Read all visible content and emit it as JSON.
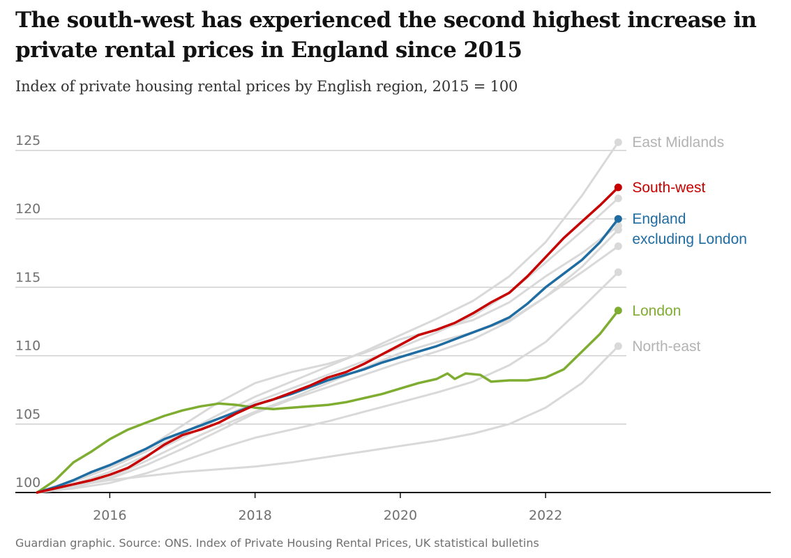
{
  "title": "The south-west has experienced the second highest increase in private rental prices in England since 2015",
  "subtitle": "Index of private housing rental prices by English region, 2015 = 100",
  "footer": "Guardian graphic. Source: ONS. Index of Private Housing Rental Prices, UK statistical bulletins",
  "chart_data": {
    "type": "line",
    "title": "The south-west has experienced the second highest increase in private rental prices in England since 2015",
    "subtitle": "Index of private housing rental prices by English region, 2015 = 100",
    "xlabel": "",
    "ylabel": "",
    "xlim": [
      2014.7,
      2025.1
    ],
    "ylim": [
      100,
      125
    ],
    "x_ticks": [
      2016,
      2018,
      2020,
      2022
    ],
    "x_tick_labels": [
      "2016",
      "2018",
      "2020",
      "2022"
    ],
    "y_ticks": [
      100,
      105,
      110,
      115,
      120,
      125
    ],
    "y_tick_labels": [
      "100",
      "105",
      "110",
      "115",
      "120",
      "125"
    ],
    "grid": "horizontal",
    "legend": "direct labels at line ends (right)",
    "series": [
      {
        "name": "East Midlands",
        "color": "#d9d9d9",
        "labelled": true,
        "points": [
          [
            2015.0,
            100
          ],
          [
            2015.5,
            100.8
          ],
          [
            2016.0,
            101.8
          ],
          [
            2016.5,
            103.0
          ],
          [
            2017.0,
            104.3
          ],
          [
            2017.5,
            105.7
          ],
          [
            2018.0,
            107.0
          ],
          [
            2018.5,
            108.1
          ],
          [
            2019.0,
            109.2
          ],
          [
            2019.5,
            110.3
          ],
          [
            2020.0,
            111.5
          ],
          [
            2020.5,
            112.7
          ],
          [
            2021.0,
            114.0
          ],
          [
            2021.5,
            115.8
          ],
          [
            2022.0,
            118.3
          ],
          [
            2022.5,
            121.7
          ],
          [
            2023.0,
            125.6
          ]
        ]
      },
      {
        "name": "",
        "color": "#d9d9d9",
        "labelled": false,
        "points": [
          [
            2015.0,
            100
          ],
          [
            2015.5,
            100.6
          ],
          [
            2016.0,
            101.5
          ],
          [
            2016.5,
            102.7
          ],
          [
            2017.0,
            104.0
          ],
          [
            2017.5,
            105.4
          ],
          [
            2018.0,
            106.6
          ],
          [
            2018.5,
            107.6
          ],
          [
            2019.0,
            108.6
          ],
          [
            2019.5,
            109.6
          ],
          [
            2020.0,
            110.6
          ],
          [
            2020.5,
            111.7
          ],
          [
            2021.0,
            112.9
          ],
          [
            2021.5,
            114.6
          ],
          [
            2022.0,
            116.8
          ],
          [
            2022.5,
            119.1
          ],
          [
            2023.0,
            121.5
          ]
        ]
      },
      {
        "name": "",
        "color": "#d9d9d9",
        "labelled": false,
        "points": [
          [
            2015.0,
            100
          ],
          [
            2015.5,
            100.9
          ],
          [
            2016.0,
            101.8
          ],
          [
            2016.5,
            103.2
          ],
          [
            2017.0,
            104.9
          ],
          [
            2017.5,
            106.6
          ],
          [
            2018.0,
            108.0
          ],
          [
            2018.5,
            108.8
          ],
          [
            2019.0,
            109.4
          ],
          [
            2019.5,
            110.2
          ],
          [
            2020.0,
            111.2
          ],
          [
            2020.5,
            111.9
          ],
          [
            2021.0,
            112.6
          ],
          [
            2021.5,
            113.9
          ],
          [
            2022.0,
            115.8
          ],
          [
            2022.5,
            117.5
          ],
          [
            2023.0,
            119.5
          ]
        ]
      },
      {
        "name": "",
        "color": "#d9d9d9",
        "labelled": false,
        "points": [
          [
            2015.0,
            100
          ],
          [
            2015.5,
            100.4
          ],
          [
            2016.0,
            101.0
          ],
          [
            2016.5,
            102.0
          ],
          [
            2017.0,
            103.2
          ],
          [
            2017.5,
            104.5
          ],
          [
            2018.0,
            105.8
          ],
          [
            2018.5,
            106.8
          ],
          [
            2019.0,
            107.7
          ],
          [
            2019.5,
            108.6
          ],
          [
            2020.0,
            109.5
          ],
          [
            2020.5,
            110.3
          ],
          [
            2021.0,
            111.2
          ],
          [
            2021.5,
            112.5
          ],
          [
            2022.0,
            114.3
          ],
          [
            2022.5,
            116.1
          ],
          [
            2023.0,
            118.0
          ]
        ]
      },
      {
        "name": "",
        "color": "#d9d9d9",
        "labelled": false,
        "points": [
          [
            2015.0,
            100
          ],
          [
            2015.5,
            100.3
          ],
          [
            2016.0,
            100.7
          ],
          [
            2016.5,
            101.4
          ],
          [
            2017.0,
            102.3
          ],
          [
            2017.5,
            103.2
          ],
          [
            2018.0,
            104.0
          ],
          [
            2018.5,
            104.6
          ],
          [
            2019.0,
            105.2
          ],
          [
            2019.5,
            105.9
          ],
          [
            2020.0,
            106.6
          ],
          [
            2020.5,
            107.3
          ],
          [
            2021.0,
            108.1
          ],
          [
            2021.5,
            109.3
          ],
          [
            2022.0,
            111.0
          ],
          [
            2022.5,
            113.5
          ],
          [
            2023.0,
            116.1
          ]
        ]
      },
      {
        "name": "",
        "color": "#d9d9d9",
        "labelled": false,
        "points": [
          [
            2015.0,
            100
          ],
          [
            2015.5,
            100.5
          ],
          [
            2016.0,
            101.1
          ],
          [
            2016.5,
            102.3
          ],
          [
            2017.0,
            103.6
          ],
          [
            2017.5,
            104.8
          ],
          [
            2018.0,
            105.9
          ],
          [
            2018.5,
            106.9
          ],
          [
            2019.0,
            108.0
          ],
          [
            2019.5,
            109.1
          ],
          [
            2020.0,
            110.2
          ],
          [
            2020.5,
            111.0
          ],
          [
            2021.0,
            111.7
          ],
          [
            2021.5,
            112.6
          ],
          [
            2022.0,
            114.3
          ],
          [
            2022.5,
            116.5
          ],
          [
            2023.0,
            119.2
          ]
        ]
      },
      {
        "name": "North-east",
        "color": "#d9d9d9",
        "labelled": true,
        "points": [
          [
            2015.0,
            100
          ],
          [
            2015.5,
            100.5
          ],
          [
            2016.0,
            100.9
          ],
          [
            2016.5,
            101.2
          ],
          [
            2017.0,
            101.5
          ],
          [
            2017.5,
            101.7
          ],
          [
            2018.0,
            101.9
          ],
          [
            2018.5,
            102.2
          ],
          [
            2019.0,
            102.6
          ],
          [
            2019.5,
            103.0
          ],
          [
            2020.0,
            103.4
          ],
          [
            2020.5,
            103.8
          ],
          [
            2021.0,
            104.3
          ],
          [
            2021.5,
            105.0
          ],
          [
            2022.0,
            106.2
          ],
          [
            2022.5,
            108.0
          ],
          [
            2023.0,
            110.7
          ]
        ]
      },
      {
        "name": "London",
        "color": "#7fad31",
        "labelled": true,
        "points": [
          [
            2015.0,
            100
          ],
          [
            2015.25,
            100.9
          ],
          [
            2015.5,
            102.2
          ],
          [
            2015.75,
            103.0
          ],
          [
            2016.0,
            103.9
          ],
          [
            2016.25,
            104.6
          ],
          [
            2016.5,
            105.1
          ],
          [
            2016.75,
            105.6
          ],
          [
            2017.0,
            106.0
          ],
          [
            2017.25,
            106.3
          ],
          [
            2017.5,
            106.5
          ],
          [
            2017.75,
            106.4
          ],
          [
            2018.0,
            106.2
          ],
          [
            2018.25,
            106.1
          ],
          [
            2018.5,
            106.2
          ],
          [
            2018.75,
            106.3
          ],
          [
            2019.0,
            106.4
          ],
          [
            2019.25,
            106.6
          ],
          [
            2019.5,
            106.9
          ],
          [
            2019.75,
            107.2
          ],
          [
            2020.0,
            107.6
          ],
          [
            2020.25,
            108.0
          ],
          [
            2020.5,
            108.3
          ],
          [
            2020.65,
            108.7
          ],
          [
            2020.75,
            108.3
          ],
          [
            2020.9,
            108.7
          ],
          [
            2021.1,
            108.6
          ],
          [
            2021.25,
            108.1
          ],
          [
            2021.5,
            108.2
          ],
          [
            2021.75,
            108.2
          ],
          [
            2022.0,
            108.4
          ],
          [
            2022.25,
            109.0
          ],
          [
            2022.5,
            110.3
          ],
          [
            2022.75,
            111.6
          ],
          [
            2023.0,
            113.3
          ]
        ]
      },
      {
        "name": "England excluding London",
        "color": "#1e6ca2",
        "labelled": true,
        "points": [
          [
            2015.0,
            100
          ],
          [
            2015.25,
            100.4
          ],
          [
            2015.5,
            100.9
          ],
          [
            2015.75,
            101.5
          ],
          [
            2016.0,
            102.0
          ],
          [
            2016.25,
            102.6
          ],
          [
            2016.5,
            103.2
          ],
          [
            2016.75,
            103.9
          ],
          [
            2017.0,
            104.4
          ],
          [
            2017.25,
            104.9
          ],
          [
            2017.5,
            105.4
          ],
          [
            2017.75,
            105.9
          ],
          [
            2018.0,
            106.4
          ],
          [
            2018.25,
            106.8
          ],
          [
            2018.5,
            107.2
          ],
          [
            2018.75,
            107.7
          ],
          [
            2019.0,
            108.2
          ],
          [
            2019.25,
            108.6
          ],
          [
            2019.5,
            109.0
          ],
          [
            2019.75,
            109.5
          ],
          [
            2020.0,
            109.9
          ],
          [
            2020.25,
            110.3
          ],
          [
            2020.5,
            110.7
          ],
          [
            2020.75,
            111.2
          ],
          [
            2021.0,
            111.7
          ],
          [
            2021.25,
            112.2
          ],
          [
            2021.5,
            112.8
          ],
          [
            2021.75,
            113.8
          ],
          [
            2022.0,
            115.0
          ],
          [
            2022.25,
            116.0
          ],
          [
            2022.5,
            117.0
          ],
          [
            2022.75,
            118.3
          ],
          [
            2023.0,
            120.0
          ]
        ]
      },
      {
        "name": "South-west",
        "color": "#c70000",
        "labelled": true,
        "points": [
          [
            2015.0,
            100
          ],
          [
            2015.25,
            100.3
          ],
          [
            2015.5,
            100.6
          ],
          [
            2015.75,
            100.9
          ],
          [
            2016.0,
            101.3
          ],
          [
            2016.25,
            101.8
          ],
          [
            2016.5,
            102.6
          ],
          [
            2016.75,
            103.5
          ],
          [
            2017.0,
            104.2
          ],
          [
            2017.25,
            104.6
          ],
          [
            2017.5,
            105.1
          ],
          [
            2017.75,
            105.8
          ],
          [
            2018.0,
            106.4
          ],
          [
            2018.25,
            106.8
          ],
          [
            2018.5,
            107.3
          ],
          [
            2018.75,
            107.8
          ],
          [
            2019.0,
            108.4
          ],
          [
            2019.25,
            108.8
          ],
          [
            2019.5,
            109.4
          ],
          [
            2019.75,
            110.1
          ],
          [
            2020.0,
            110.8
          ],
          [
            2020.25,
            111.5
          ],
          [
            2020.5,
            111.9
          ],
          [
            2020.75,
            112.4
          ],
          [
            2021.0,
            113.1
          ],
          [
            2021.25,
            113.9
          ],
          [
            2021.5,
            114.6
          ],
          [
            2021.75,
            115.8
          ],
          [
            2022.0,
            117.2
          ],
          [
            2022.25,
            118.6
          ],
          [
            2022.5,
            119.8
          ],
          [
            2022.75,
            121.0
          ],
          [
            2023.0,
            122.3
          ]
        ]
      }
    ]
  }
}
